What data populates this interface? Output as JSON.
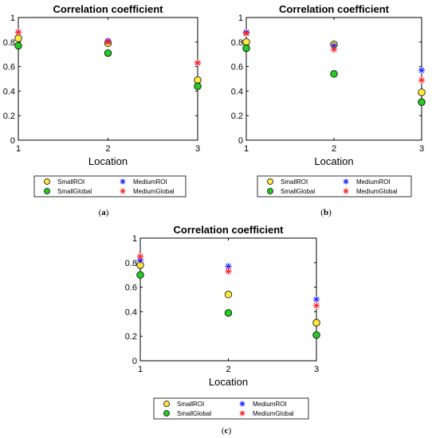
{
  "chart_data": [
    {
      "type": "scatter",
      "title": "Correlation coefficient",
      "xlabel": "Location",
      "ylabel": "",
      "caption": "(a)",
      "x": [
        1,
        2,
        3
      ],
      "xticks": [
        "1",
        "2",
        "3"
      ],
      "xlim": [
        1,
        3
      ],
      "ylim": [
        0,
        1
      ],
      "yticks": [
        "0",
        "0.2",
        "0.4",
        "0.6",
        "0.8",
        "1"
      ],
      "grid": false,
      "legend_placement": "bottom",
      "series": [
        {
          "name": "SmallROI",
          "values": [
            0.83,
            0.79,
            0.49
          ],
          "color": "#ffeb3b",
          "marker": "circle"
        },
        {
          "name": "SmallGlobal",
          "values": [
            0.77,
            0.71,
            0.44
          ],
          "color": "#22cc22",
          "marker": "circle"
        },
        {
          "name": "MediumROI",
          "values": [
            0.88,
            0.81,
            0.63
          ],
          "color": "#2222ff",
          "marker": "asterisk"
        },
        {
          "name": "MediumGlobal",
          "values": [
            0.88,
            0.8,
            0.63
          ],
          "color": "#ff2222",
          "marker": "asterisk"
        }
      ]
    },
    {
      "type": "scatter",
      "title": "Correlation coefficient",
      "xlabel": "Location",
      "ylabel": "",
      "caption": "(b)",
      "x": [
        1,
        2,
        3
      ],
      "xticks": [
        "1",
        "2",
        "3"
      ],
      "xlim": [
        1,
        3
      ],
      "ylim": [
        0,
        1
      ],
      "yticks": [
        "0",
        "0.2",
        "0.4",
        "0.6",
        "0.8",
        "1"
      ],
      "grid": false,
      "legend_placement": "bottom",
      "series": [
        {
          "name": "SmallROI",
          "values": [
            0.8,
            0.78,
            0.39
          ],
          "color": "#ffeb3b",
          "marker": "circle"
        },
        {
          "name": "SmallGlobal",
          "values": [
            0.75,
            0.54,
            0.31
          ],
          "color": "#22cc22",
          "marker": "circle"
        },
        {
          "name": "MediumROI",
          "values": [
            0.88,
            0.77,
            0.57
          ],
          "color": "#2222ff",
          "marker": "asterisk"
        },
        {
          "name": "MediumGlobal",
          "values": [
            0.87,
            0.74,
            0.49
          ],
          "color": "#ff2222",
          "marker": "asterisk"
        }
      ]
    },
    {
      "type": "scatter",
      "title": "Correlation coefficient",
      "xlabel": "Location",
      "ylabel": "",
      "caption": "(c)",
      "x": [
        1,
        2,
        3
      ],
      "xticks": [
        "1",
        "2",
        "3"
      ],
      "xlim": [
        1,
        3
      ],
      "ylim": [
        0,
        1
      ],
      "yticks": [
        "0",
        "0.2",
        "0.4",
        "0.6",
        "0.8",
        "1"
      ],
      "grid": false,
      "legend_placement": "bottom",
      "series": [
        {
          "name": "SmallROI",
          "values": [
            0.78,
            0.54,
            0.31
          ],
          "color": "#ffeb3b",
          "marker": "circle"
        },
        {
          "name": "SmallGlobal",
          "values": [
            0.7,
            0.39,
            0.21
          ],
          "color": "#22cc22",
          "marker": "circle"
        },
        {
          "name": "MediumROI",
          "values": [
            0.82,
            0.77,
            0.5
          ],
          "color": "#2222ff",
          "marker": "asterisk"
        },
        {
          "name": "MediumGlobal",
          "values": [
            0.85,
            0.73,
            0.45
          ],
          "color": "#ff2222",
          "marker": "asterisk"
        }
      ]
    }
  ]
}
